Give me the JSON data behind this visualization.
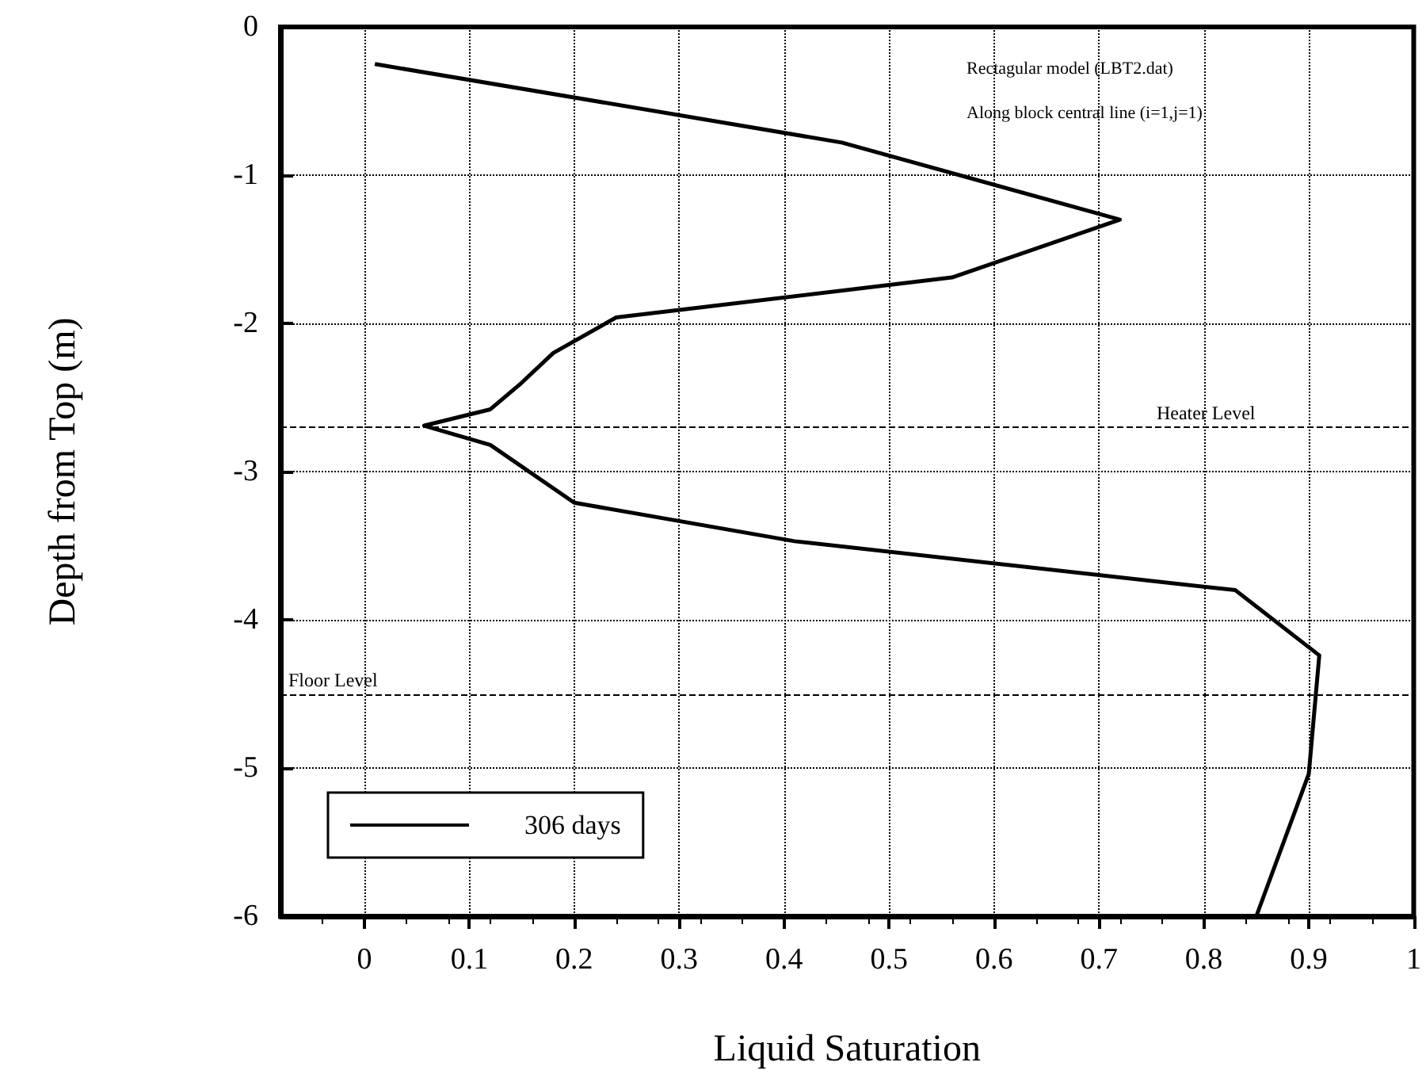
{
  "chart_data": {
    "type": "line",
    "xlabel": "Liquid Saturation",
    "ylabel": "Depth from Top (m)",
    "annotations": [
      "Rectagular model (LBT2.dat)",
      "Along block central line (i=1,j=1)"
    ],
    "series": [
      {
        "name": "306 days",
        "color": "#000000",
        "x": [
          0.01,
          0.455,
          0.72,
          0.56,
          0.24,
          0.18,
          0.15,
          0.12,
          0.057,
          0.12,
          0.2,
          0.41,
          0.83,
          0.91,
          0.9,
          0.85
        ],
        "values": [
          -0.25,
          -0.78,
          -1.3,
          -1.69,
          -1.96,
          -2.2,
          -2.4,
          -2.58,
          -2.69,
          -2.82,
          -3.21,
          -3.47,
          -3.8,
          -4.24,
          -5.04,
          -6
        ]
      }
    ],
    "ref_lines": [
      {
        "axis": "y",
        "value": -2.7,
        "label": "Heater Level",
        "line_style": "dashed"
      },
      {
        "axis": "y",
        "value": -4.5,
        "label": "Floor Level",
        "line_style": "dashed"
      }
    ],
    "xlim": [
      -0.08,
      1
    ],
    "xticks": [
      0,
      0.1,
      0.2,
      0.3,
      0.4,
      0.5,
      0.6,
      0.7,
      0.8,
      0.9,
      1
    ],
    "ylim": [
      -6,
      0
    ],
    "yticks": [
      0,
      -1,
      -2,
      -3,
      -4,
      -5,
      -6
    ],
    "grid": true,
    "legend": "bottom left",
    "marker": "none",
    "line_style": "solid"
  }
}
